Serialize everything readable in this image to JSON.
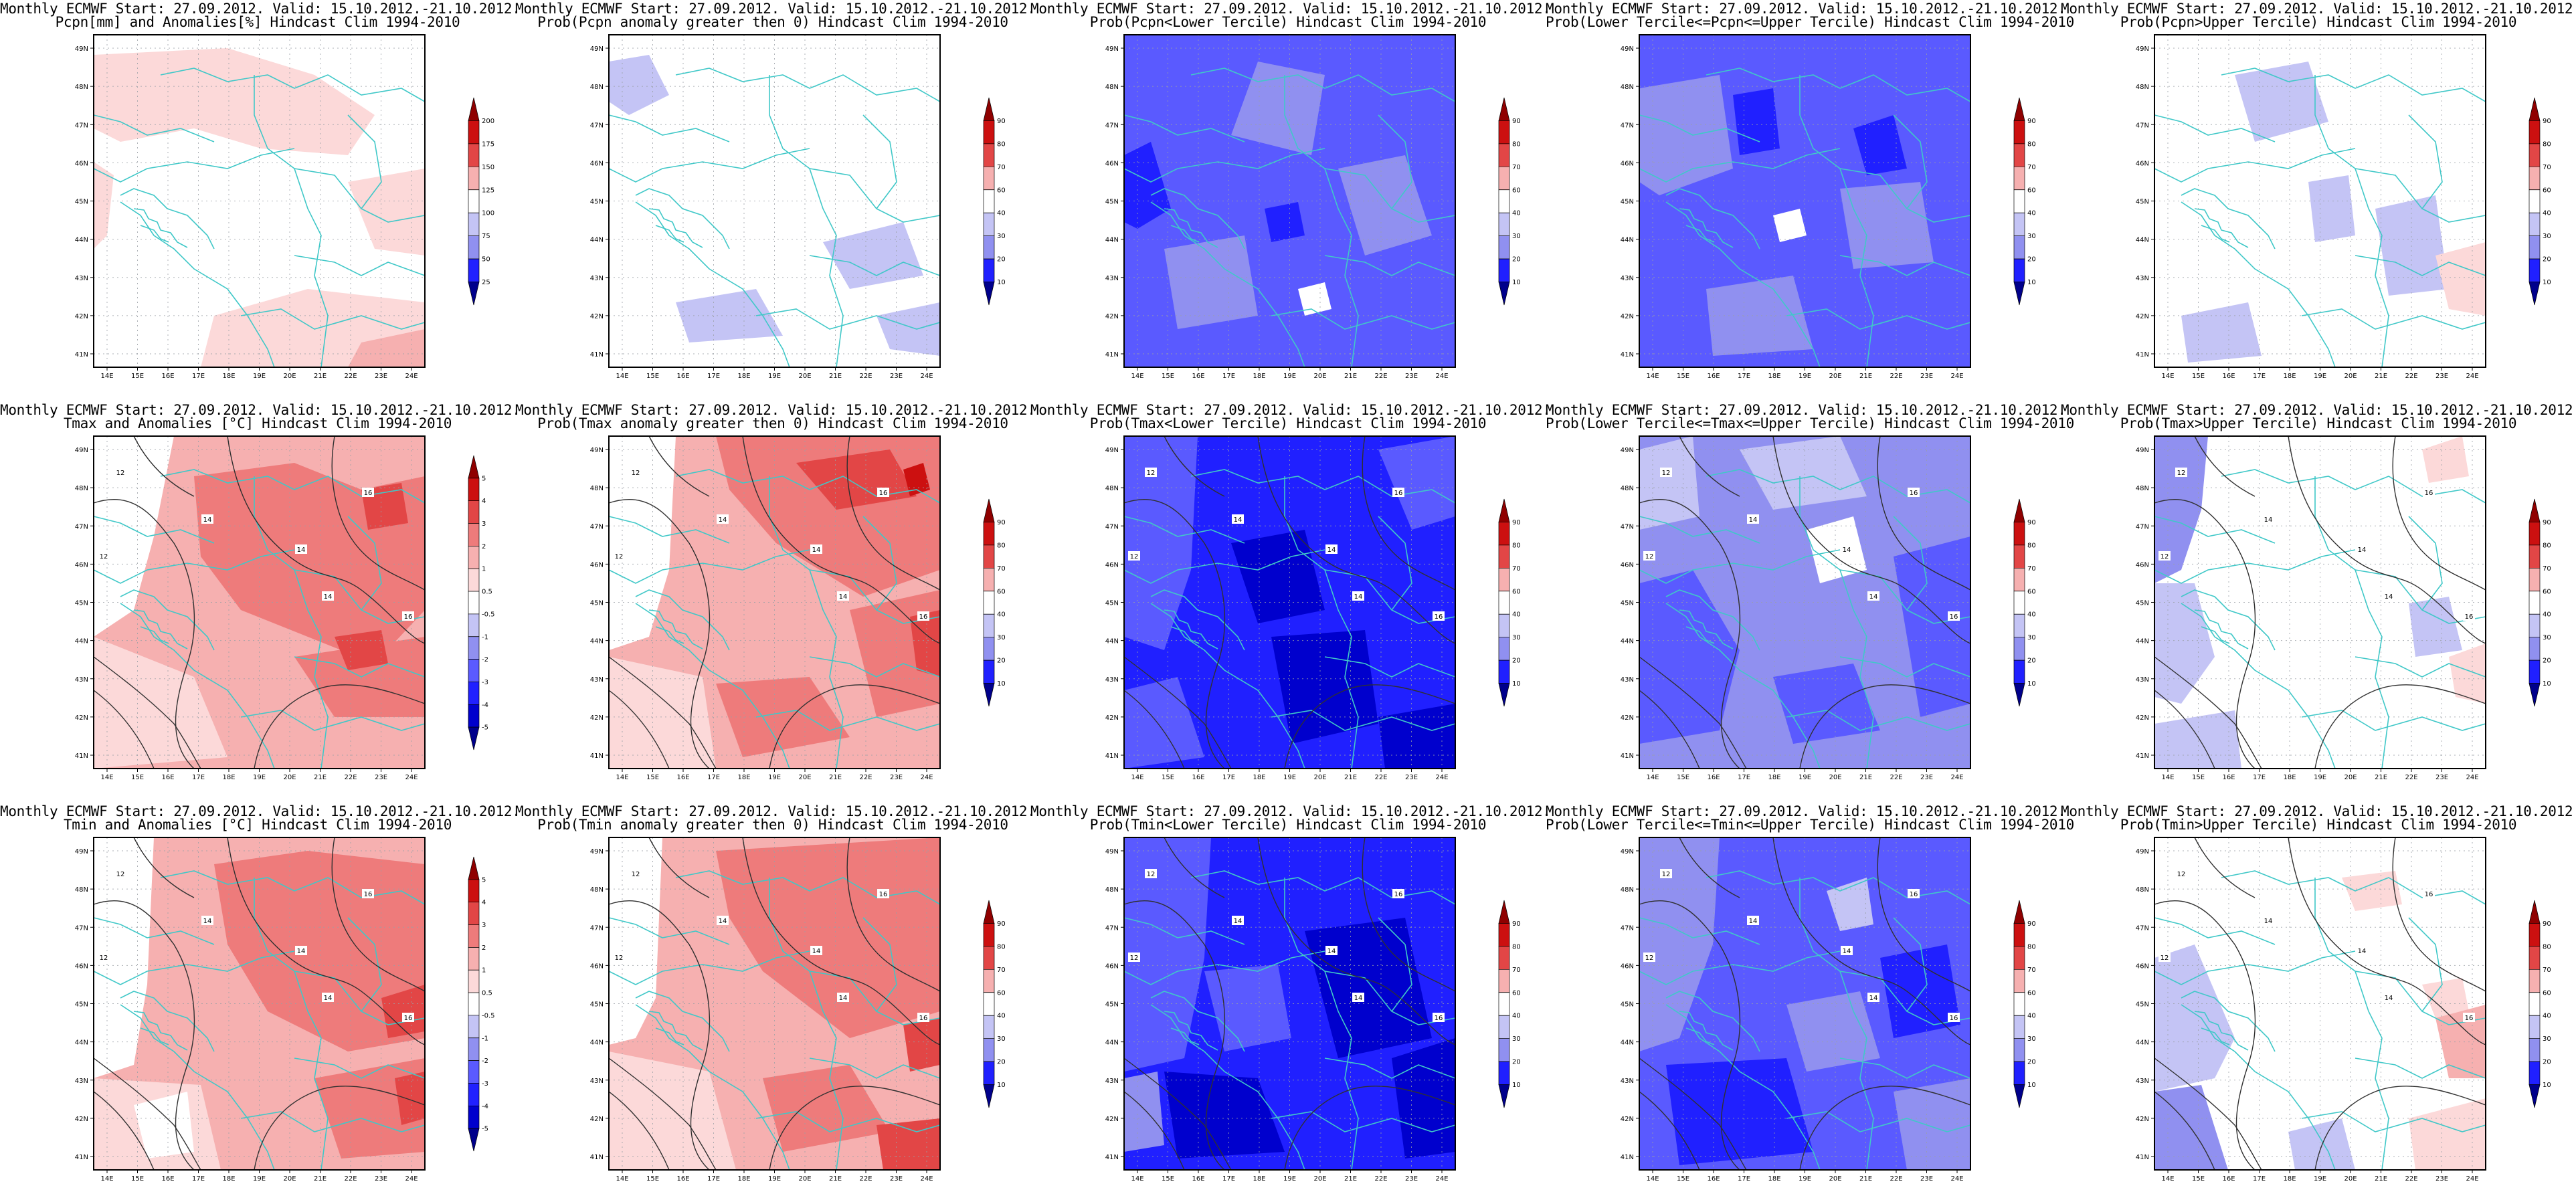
{
  "header_line1": "Monthly ECMWF Start: 27.09.2012. Valid: 15.10.2012.-21.10.2012.",
  "colors": {
    "blue": [
      "#0000cd",
      "#2020ff",
      "#5a5aff",
      "#9090f0",
      "#c4c4f5"
    ],
    "white": "#ffffff",
    "red": [
      "#fcd9d9",
      "#f6b0b0",
      "#ee7b7b",
      "#e24646",
      "#cc1010",
      "#8f0000"
    ],
    "borders": "#40c8c8",
    "contours": "#303030"
  },
  "axes": {
    "lon_labels": [
      "14E",
      "15E",
      "16E",
      "17E",
      "18E",
      "19E",
      "20E",
      "21E",
      "22E",
      "23E",
      "24E"
    ],
    "lat_labels": [
      "49N",
      "48N",
      "47N",
      "46N",
      "45N",
      "44N",
      "43N",
      "42N",
      "41N"
    ]
  },
  "colorbars": {
    "prob": [
      "90",
      "80",
      "70",
      "60",
      "40",
      "30",
      "20",
      "10"
    ],
    "pcpn": [
      "200",
      "175",
      "150",
      "125",
      "100",
      "75",
      "50",
      "25"
    ],
    "temp": [
      "5",
      "4",
      "3",
      "2",
      "1",
      "0.5",
      "-0.5",
      "-1",
      "-2",
      "-3",
      "-4",
      "-5"
    ]
  },
  "contour_labels": [
    "12",
    "14",
    "14",
    "12",
    "16",
    "14",
    "16"
  ],
  "rows": [
    {
      "variable": "Pcpn",
      "panels": [
        {
          "title2": "Pcpn[mm] and Anomalies[%] Hindcast Clim 1994-2010",
          "cbar": "pcpn",
          "bg": "white",
          "contours": false
        },
        {
          "title2": "Prob(Pcpn anomaly greater then 0) Hindcast Clim 1994-2010",
          "cbar": "prob",
          "bg": "white",
          "contours": false
        },
        {
          "title2": "Prob(Pcpn<Lower Tercile) Hindcast Clim 1994-2010",
          "cbar": "prob",
          "bg": "blue2",
          "contours": false
        },
        {
          "title2": "Prob(Lower Tercile<=Pcpn<=Upper Tercile) Hindcast Clim 1994-2010",
          "cbar": "prob",
          "bg": "blue2",
          "contours": false
        },
        {
          "title2": "Prob(Pcpn>Upper Tercile) Hindcast Clim 1994-2010",
          "cbar": "prob",
          "bg": "white",
          "contours": false
        }
      ]
    },
    {
      "variable": "Tmax",
      "panels": [
        {
          "title2": "Tmax and Anomalies [°C] Hindcast Clim 1994-2010",
          "cbar": "temp",
          "bg": "red1",
          "contours": true
        },
        {
          "title2": "Prob(Tmax anomaly greater then 0) Hindcast Clim 1994-2010",
          "cbar": "prob",
          "bg": "red1",
          "contours": true
        },
        {
          "title2": "Prob(Tmax<Lower Tercile) Hindcast Clim 1994-2010",
          "cbar": "prob",
          "bg": "blue1",
          "contours": true
        },
        {
          "title2": "Prob(Lower Tercile<=Tmax<=Upper Tercile) Hindcast Clim 1994-2010",
          "cbar": "prob",
          "bg": "blue3",
          "contours": true
        },
        {
          "title2": "Prob(Tmax>Upper Tercile) Hindcast Clim 1994-2010",
          "cbar": "prob",
          "bg": "white",
          "contours": true
        }
      ]
    },
    {
      "variable": "Tmin",
      "panels": [
        {
          "title2": "Tmin and Anomalies [°C] Hindcast Clim 1994-2010",
          "cbar": "temp",
          "bg": "red1",
          "contours": true
        },
        {
          "title2": "Prob(Tmin anomaly greater then 0) Hindcast Clim 1994-2010",
          "cbar": "prob",
          "bg": "red1",
          "contours": true
        },
        {
          "title2": "Prob(Tmin<Lower Tercile) Hindcast Clim 1994-2010",
          "cbar": "prob",
          "bg": "blue1",
          "contours": true
        },
        {
          "title2": "Prob(Lower Tercile<=Tmin<=Upper Tercile) Hindcast Clim 1994-2010",
          "cbar": "prob",
          "bg": "blue2",
          "contours": true
        },
        {
          "title2": "Prob(Tmin>Upper Tercile) Hindcast Clim 1994-2010",
          "cbar": "prob",
          "bg": "white",
          "contours": true
        }
      ]
    }
  ]
}
